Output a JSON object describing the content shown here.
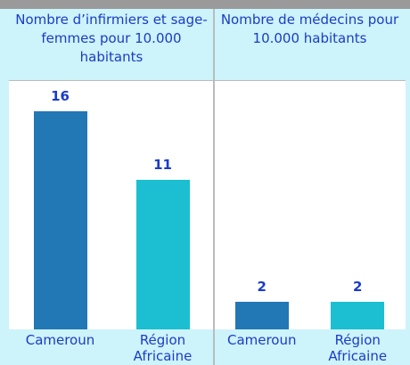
{
  "chart_data": [
    {
      "type": "bar",
      "title": "Nombre d’infirmiers et sage-femmes pour 10.000 habitants",
      "categories": [
        "Cameroun",
        "Région Africaine"
      ],
      "values": [
        16,
        11
      ],
      "colors": [
        "#2277b5",
        "#1bbfd1"
      ]
    },
    {
      "type": "bar",
      "title": "Nombre de médecins pour 10.000 habitants",
      "categories": [
        "Cameroun",
        "Région Africaine"
      ],
      "values": [
        2,
        2
      ],
      "colors": [
        "#2277b5",
        "#1bbfd1"
      ]
    }
  ]
}
